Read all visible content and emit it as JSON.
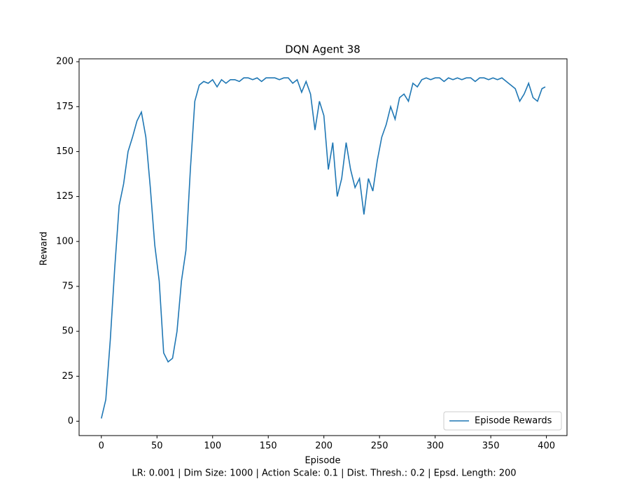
{
  "chart_data": {
    "type": "line",
    "title": "DQN Agent 38",
    "xlabel": "Episode",
    "ylabel": "Reward",
    "caption": "LR: 0.001 | Dim Size: 1000 | Action Scale: 0.1 | Dist. Thresh.: 0.2 | Epsd. Length: 200",
    "x": [
      0,
      4,
      8,
      12,
      16,
      20,
      24,
      28,
      32,
      36,
      40,
      44,
      48,
      52,
      56,
      60,
      64,
      68,
      72,
      76,
      80,
      84,
      88,
      92,
      96,
      100,
      104,
      108,
      112,
      116,
      120,
      124,
      128,
      132,
      136,
      140,
      144,
      148,
      152,
      156,
      160,
      164,
      168,
      172,
      176,
      180,
      184,
      188,
      192,
      196,
      200,
      204,
      208,
      212,
      216,
      220,
      224,
      228,
      232,
      236,
      240,
      244,
      248,
      252,
      256,
      260,
      264,
      268,
      272,
      276,
      280,
      284,
      288,
      292,
      296,
      300,
      304,
      308,
      312,
      316,
      320,
      324,
      328,
      332,
      336,
      340,
      344,
      348,
      352,
      356,
      360,
      364,
      368,
      372,
      376,
      380,
      384,
      388,
      392,
      396,
      399
    ],
    "series": [
      {
        "name": "Episode Rewards",
        "color": "#1f77b4",
        "values": [
          1.5,
          12,
          45,
          85,
          120,
          132,
          150,
          158,
          167,
          172,
          158,
          130,
          98,
          78,
          38,
          33,
          35,
          50,
          78,
          95,
          140,
          178,
          187,
          189,
          188,
          190,
          186,
          190,
          188,
          190,
          190,
          189,
          191,
          191,
          190,
          191,
          189,
          191,
          191,
          191,
          190,
          191,
          191,
          188,
          190,
          183,
          189,
          182,
          162,
          178,
          170,
          140,
          155,
          125,
          135,
          155,
          140,
          130,
          135,
          115,
          135,
          128,
          145,
          158,
          165,
          175,
          168,
          180,
          182,
          178,
          188,
          186,
          190,
          191,
          190,
          191,
          191,
          189,
          191,
          190,
          191,
          190,
          191,
          191,
          189,
          191,
          191,
          190,
          191,
          190,
          191,
          189,
          187,
          185,
          178,
          182,
          188,
          180,
          178,
          185,
          186
        ]
      }
    ],
    "xlim": [
      -20,
      418.5
    ],
    "ylim": [
      -8,
      201.6
    ],
    "xticks": [
      0,
      50,
      100,
      150,
      200,
      250,
      300,
      350,
      400
    ],
    "yticks": [
      0,
      25,
      50,
      75,
      100,
      125,
      150,
      175,
      200
    ],
    "legend": "lower right"
  }
}
